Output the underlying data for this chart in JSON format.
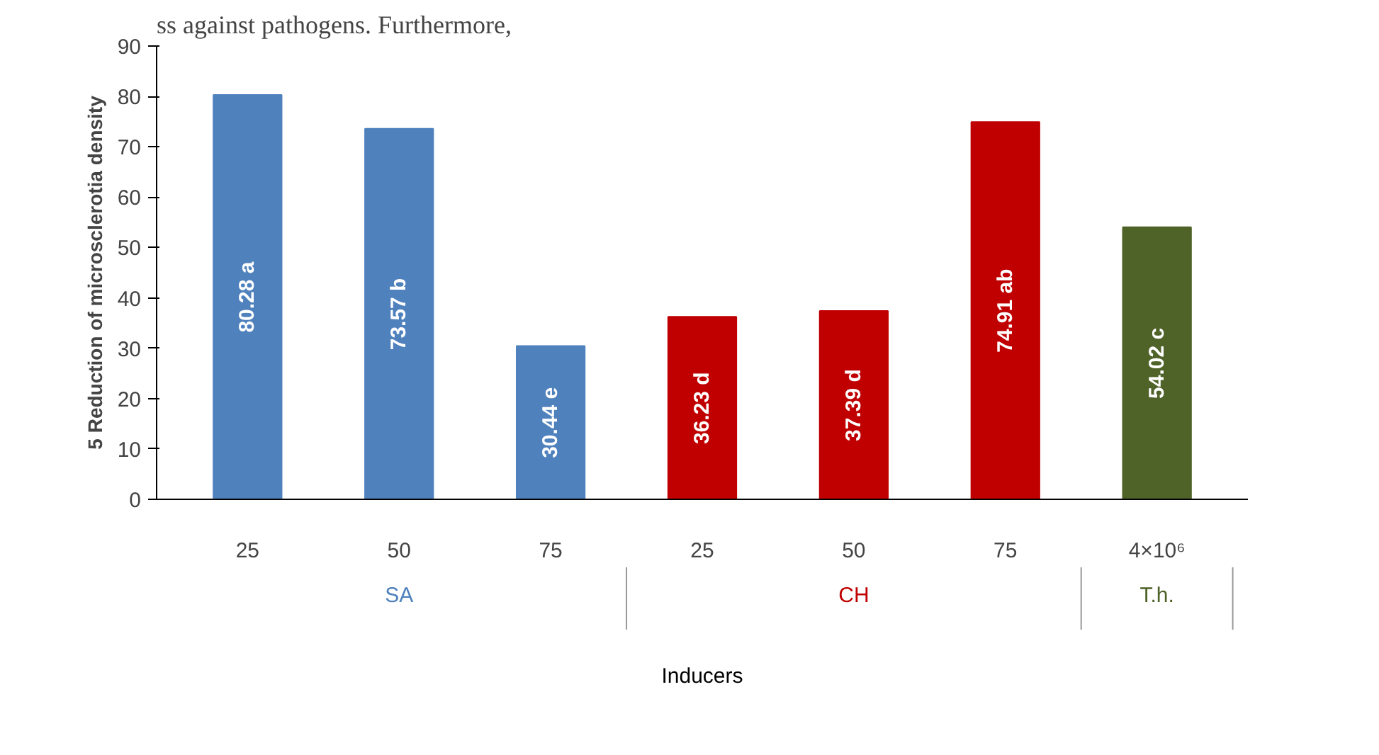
{
  "chart_data": {
    "type": "bar",
    "ylabel": "5 Reduction of microsclerotia density",
    "xlabel": "Inducers",
    "categories": [
      "25",
      "50",
      "75",
      "25",
      "50",
      "75",
      "4×10⁶"
    ],
    "series": [
      {
        "name": "SA",
        "color": "#4f81bd",
        "values": [
          80.28,
          73.57,
          30.44,
          null,
          null,
          null,
          null
        ],
        "value_labels": [
          "80.28 a",
          "73.57 b",
          "30.44 e",
          null,
          null,
          null,
          null
        ]
      },
      {
        "name": "CH",
        "color": "#c00000",
        "values": [
          null,
          null,
          null,
          36.23,
          37.39,
          74.91,
          null
        ],
        "value_labels": [
          null,
          null,
          null,
          "36.23 d",
          "37.39 d",
          "74.91 ab",
          null
        ]
      },
      {
        "name": "T.h.",
        "color": "#4f6228",
        "values": [
          null,
          null,
          null,
          null,
          null,
          null,
          54.02
        ],
        "value_labels": [
          null,
          null,
          null,
          null,
          null,
          null,
          "54.02 c"
        ]
      }
    ],
    "ylim": [
      0,
      90
    ],
    "yticks": [
      0,
      10,
      20,
      30,
      40,
      50,
      60,
      70,
      80,
      90
    ],
    "grid": false,
    "annotations": [
      "ss against pathogens. Furthermore,"
    ]
  }
}
